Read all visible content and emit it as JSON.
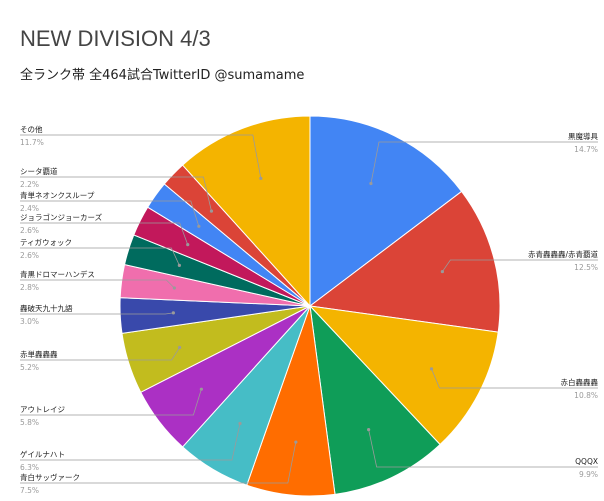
{
  "title": "NEW DIVISION 4/3",
  "subtitle": "全ランク帯 全464試合TwitterID @sumamame",
  "chart_data": {
    "type": "pie",
    "title": "NEW DIVISION 4/3",
    "subtitle": "全ランク帯 全464試合TwitterID @sumamame",
    "slices": [
      {
        "label": "黒魔導具",
        "pct_text": "14.7%",
        "value": 14.7,
        "color": "#4285f4"
      },
      {
        "label": "赤青轟轟轟/赤青覇道",
        "pct_text": "12.5%",
        "value": 12.5,
        "color": "#db4437"
      },
      {
        "label": "赤白轟轟轟",
        "pct_text": "10.8%",
        "value": 10.8,
        "color": "#f4b400"
      },
      {
        "label": "QQQX",
        "pct_text": "9.9%",
        "value": 9.9,
        "color": "#0f9d58"
      },
      {
        "label": "青白サッヴァーク",
        "pct_text": "7.5%",
        "value": 7.5,
        "color": "#ff6d00"
      },
      {
        "label": "ゲイルナハト",
        "pct_text": "6.3%",
        "value": 6.3,
        "color": "#46bdc6"
      },
      {
        "label": "アウトレイジ",
        "pct_text": "5.8%",
        "value": 5.8,
        "color": "#ab30c4"
      },
      {
        "label": "赤単轟轟轟",
        "pct_text": "5.2%",
        "value": 5.2,
        "color": "#c2bc1e"
      },
      {
        "label": "轟破天九十九語",
        "pct_text": "3.0%",
        "value": 3.0,
        "color": "#3949ab"
      },
      {
        "label": "青黒ドロマーハンデス",
        "pct_text": "2.8%",
        "value": 2.8,
        "color": "#f06ead"
      },
      {
        "label": "ティガウォック",
        "pct_text": "2.6%",
        "value": 2.6,
        "color": "#006b5e"
      },
      {
        "label": "ジョラゴンジョーカーズ",
        "pct_text": "2.6%",
        "value": 2.6,
        "color": "#c2185b"
      },
      {
        "label": "青単ネオンクスループ",
        "pct_text": "2.4%",
        "value": 2.4,
        "color": "#4285f4"
      },
      {
        "label": "シータ覇道",
        "pct_text": "2.2%",
        "value": 2.2,
        "color": "#db4437"
      },
      {
        "label": "その他",
        "pct_text": "11.7%",
        "value": 11.7,
        "color": "#f4b400"
      }
    ],
    "legend": "none"
  }
}
